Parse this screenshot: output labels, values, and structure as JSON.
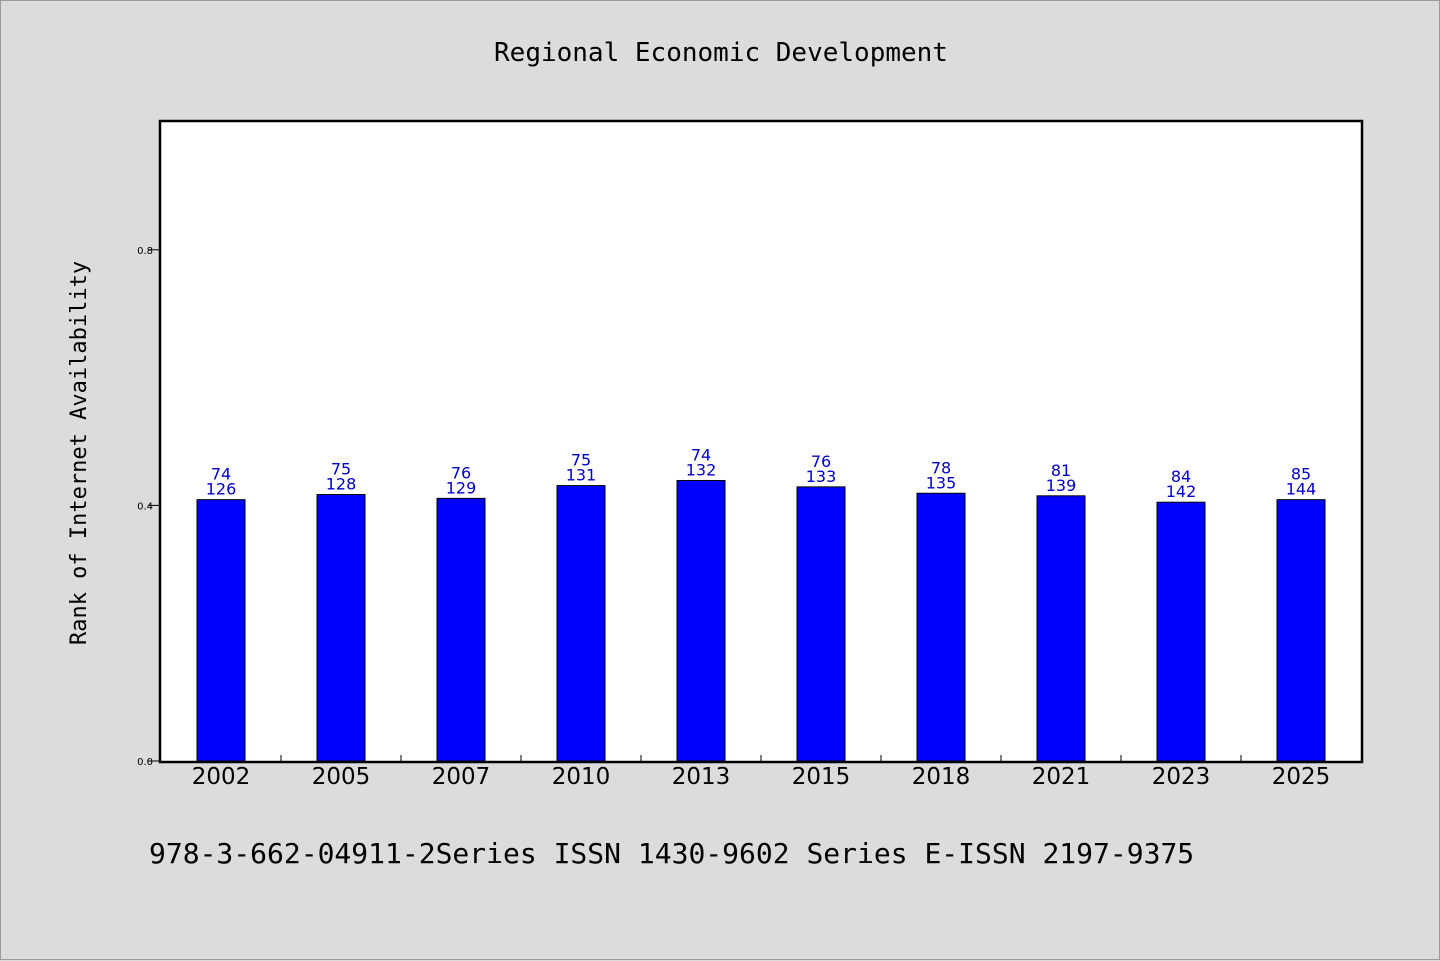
{
  "chart_data": {
    "type": "bar",
    "title": "Regional Economic Development",
    "xlabel": "",
    "ylabel": "Rank of Internet Availability",
    "ylim": [
      0,
      1.0
    ],
    "yticks": [
      "0.0",
      "0.4",
      "0.8"
    ],
    "ytick_values": [
      0.0,
      0.4,
      0.8
    ],
    "categories": [
      "2002",
      "2005",
      "2007",
      "2010",
      "2013",
      "2015",
      "2018",
      "2021",
      "2023",
      "2025"
    ],
    "values": [
      0.409,
      0.417,
      0.411,
      0.431,
      0.439,
      0.429,
      0.419,
      0.415,
      0.405,
      0.409
    ],
    "labels_top": [
      "74",
      "75",
      "76",
      "75",
      "74",
      "76",
      "78",
      "81",
      "84",
      "85"
    ],
    "labels_bottom": [
      "126",
      "128",
      "129",
      "131",
      "132",
      "133",
      "135",
      "139",
      "142",
      "144"
    ],
    "bar_color": "#0000ff",
    "label_color": "#0000cc",
    "grid": false
  },
  "footer": {
    "text": "978-3-662-04911-2Series ISSN 1430-9602 Series E-ISSN 2197-9375"
  }
}
